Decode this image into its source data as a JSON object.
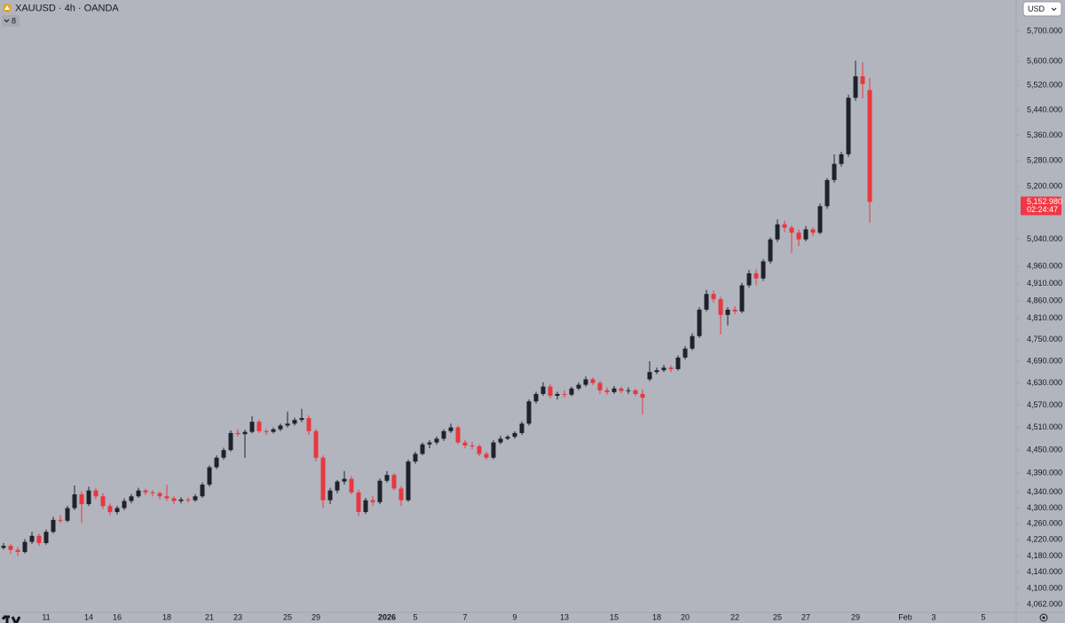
{
  "header": {
    "symbol": "XAUUSD · 4h · OANDA",
    "indicator_count": "8",
    "currency": "USD"
  },
  "chart_data": {
    "type": "candlestick",
    "log_scale": true,
    "grid": false,
    "up_color": "#1f222b",
    "down_color": "#e8373f",
    "ylim": [
      4043,
      5806
    ],
    "yticks": [
      {
        "value": 5700,
        "label": "5,700.000"
      },
      {
        "value": 5600,
        "label": "5,600.000"
      },
      {
        "value": 5520,
        "label": "5,520.000"
      },
      {
        "value": 5440,
        "label": "5,440.000"
      },
      {
        "value": 5360,
        "label": "5,360.000"
      },
      {
        "value": 5280,
        "label": "5,280.000"
      },
      {
        "value": 5200,
        "label": "5,200.000"
      },
      {
        "value": 5040,
        "label": "5,040.000"
      },
      {
        "value": 4960,
        "label": "4,960.000"
      },
      {
        "value": 4910,
        "label": "4,910.000"
      },
      {
        "value": 4860,
        "label": "4,860.000"
      },
      {
        "value": 4810,
        "label": "4,810.000"
      },
      {
        "value": 4750,
        "label": "4,750.000"
      },
      {
        "value": 4690,
        "label": "4,690.000"
      },
      {
        "value": 4630,
        "label": "4,630.000"
      },
      {
        "value": 4570,
        "label": "4,570.000"
      },
      {
        "value": 4510,
        "label": "4,510.000"
      },
      {
        "value": 4450,
        "label": "4,450.000"
      },
      {
        "value": 4390,
        "label": "4,390.000"
      },
      {
        "value": 4340,
        "label": "4,340.000"
      },
      {
        "value": 4300,
        "label": "4,300.000"
      },
      {
        "value": 4260,
        "label": "4,260.000"
      },
      {
        "value": 4220,
        "label": "4,220.000"
      },
      {
        "value": 4180,
        "label": "4,180.000"
      },
      {
        "value": 4140,
        "label": "4,140.000"
      },
      {
        "value": 4100,
        "label": "4,100.000"
      },
      {
        "value": 4062,
        "label": "4,062.000"
      }
    ],
    "last_price": {
      "value": 5152.98,
      "label": "5,152.980"
    },
    "countdown": "02:24:47",
    "categories": [
      null,
      null,
      null,
      null,
      null,
      null,
      null,
      "11",
      null,
      null,
      null,
      null,
      null,
      "14",
      null,
      null,
      null,
      "16",
      null,
      null,
      null,
      null,
      null,
      null,
      "18",
      null,
      null,
      null,
      null,
      null,
      "21",
      null,
      null,
      null,
      "23",
      null,
      null,
      null,
      null,
      null,
      null,
      "25",
      null,
      null,
      null,
      "29",
      null,
      null,
      null,
      null,
      null,
      null,
      null,
      null,
      null,
      "2026",
      null,
      null,
      null,
      "5",
      null,
      null,
      null,
      null,
      null,
      null,
      "7",
      null,
      null,
      null,
      null,
      null,
      null,
      "9",
      null,
      null,
      null,
      null,
      null,
      null,
      "13",
      null,
      null,
      null,
      null,
      null,
      null,
      "15",
      null,
      null,
      null,
      null,
      null,
      "18",
      null,
      null,
      null,
      "20",
      null,
      null,
      null,
      null,
      null,
      null,
      "22",
      null,
      null,
      null,
      null,
      null,
      "25",
      null,
      null,
      null,
      "27",
      null,
      null,
      null,
      null,
      null,
      null,
      "29",
      null,
      null,
      null,
      null,
      null,
      null,
      "Feb",
      null,
      null,
      null,
      "3",
      null,
      null,
      null,
      null,
      null,
      null,
      "5"
    ],
    "values": [
      [
        4195,
        4210,
        4188,
        4200
      ],
      [
        4200,
        4212,
        4196,
        4205
      ],
      [
        4205,
        4210,
        4185,
        4195
      ],
      [
        4195,
        4202,
        4180,
        4190
      ],
      [
        4190,
        4222,
        4186,
        4215
      ],
      [
        4215,
        4240,
        4210,
        4230
      ],
      [
        4230,
        4236,
        4205,
        4212
      ],
      [
        4212,
        4246,
        4208,
        4240
      ],
      [
        4240,
        4278,
        4236,
        4270
      ],
      [
        4270,
        4282,
        4262,
        4268
      ],
      [
        4268,
        4306,
        4264,
        4300
      ],
      [
        4300,
        4358,
        4295,
        4335
      ],
      [
        4335,
        4342,
        4262,
        4310
      ],
      [
        4310,
        4355,
        4305,
        4345
      ],
      [
        4345,
        4352,
        4322,
        4330
      ],
      [
        4330,
        4338,
        4298,
        4305
      ],
      [
        4305,
        4312,
        4282,
        4290
      ],
      [
        4290,
        4306,
        4284,
        4300
      ],
      [
        4300,
        4325,
        4295,
        4318
      ],
      [
        4318,
        4336,
        4312,
        4330
      ],
      [
        4330,
        4352,
        4326,
        4345
      ],
      [
        4345,
        4350,
        4333,
        4340
      ],
      [
        4340,
        4346,
        4330,
        4338
      ],
      [
        4338,
        4342,
        4322,
        4330
      ],
      [
        4330,
        4360,
        4318,
        4325
      ],
      [
        4325,
        4330,
        4310,
        4318
      ],
      [
        4318,
        4328,
        4312,
        4322
      ],
      [
        4322,
        4327,
        4314,
        4320
      ],
      [
        4320,
        4336,
        4316,
        4330
      ],
      [
        4330,
        4366,
        4326,
        4360
      ],
      [
        4360,
        4410,
        4355,
        4405
      ],
      [
        4405,
        4436,
        4400,
        4430
      ],
      [
        4430,
        4456,
        4425,
        4450
      ],
      [
        4450,
        4502,
        4446,
        4495
      ],
      [
        4495,
        4505,
        4486,
        4492
      ],
      [
        4492,
        4504,
        4430,
        4498
      ],
      [
        4498,
        4540,
        4494,
        4525
      ],
      [
        4525,
        4530,
        4495,
        4500
      ],
      [
        4500,
        4506,
        4490,
        4498
      ],
      [
        4498,
        4510,
        4494,
        4505
      ],
      [
        4505,
        4520,
        4500,
        4515
      ],
      [
        4515,
        4552,
        4510,
        4520
      ],
      [
        4520,
        4536,
        4515,
        4530
      ],
      [
        4530,
        4560,
        4524,
        4535
      ],
      [
        4535,
        4542,
        4490,
        4500
      ],
      [
        4500,
        4506,
        4420,
        4430
      ],
      [
        4430,
        4436,
        4300,
        4320
      ],
      [
        4320,
        4352,
        4310,
        4345
      ],
      [
        4345,
        4372,
        4338,
        4368
      ],
      [
        4368,
        4395,
        4360,
        4375
      ],
      [
        4375,
        4382,
        4335,
        4340
      ],
      [
        4340,
        4348,
        4280,
        4290
      ],
      [
        4290,
        4326,
        4285,
        4320
      ],
      [
        4320,
        4330,
        4305,
        4315
      ],
      [
        4315,
        4376,
        4310,
        4370
      ],
      [
        4370,
        4395,
        4365,
        4385
      ],
      [
        4385,
        4390,
        4345,
        4350
      ],
      [
        4350,
        4356,
        4305,
        4320
      ],
      [
        4320,
        4425,
        4316,
        4420
      ],
      [
        4420,
        4446,
        4414,
        4440
      ],
      [
        4440,
        4470,
        4436,
        4465
      ],
      [
        4465,
        4476,
        4455,
        4470
      ],
      [
        4470,
        4486,
        4464,
        4480
      ],
      [
        4480,
        4505,
        4474,
        4500
      ],
      [
        4500,
        4520,
        4495,
        4510
      ],
      [
        4510,
        4515,
        4465,
        4470
      ],
      [
        4470,
        4476,
        4455,
        4462
      ],
      [
        4462,
        4472,
        4452,
        4460
      ],
      [
        4460,
        4465,
        4434,
        4440
      ],
      [
        4440,
        4446,
        4424,
        4430
      ],
      [
        4430,
        4476,
        4426,
        4470
      ],
      [
        4470,
        4488,
        4465,
        4480
      ],
      [
        4480,
        4490,
        4476,
        4485
      ],
      [
        4485,
        4500,
        4480,
        4495
      ],
      [
        4495,
        4526,
        4490,
        4520
      ],
      [
        4520,
        4585,
        4515,
        4580
      ],
      [
        4580,
        4606,
        4574,
        4600
      ],
      [
        4600,
        4632,
        4595,
        4620
      ],
      [
        4620,
        4626,
        4588,
        4595
      ],
      [
        4595,
        4606,
        4585,
        4600
      ],
      [
        4600,
        4610,
        4590,
        4598
      ],
      [
        4598,
        4620,
        4594,
        4615
      ],
      [
        4615,
        4632,
        4610,
        4625
      ],
      [
        4625,
        4648,
        4620,
        4640
      ],
      [
        4640,
        4645,
        4624,
        4630
      ],
      [
        4630,
        4636,
        4600,
        4610
      ],
      [
        4610,
        4618,
        4598,
        4605
      ],
      [
        4605,
        4622,
        4600,
        4615
      ],
      [
        4615,
        4620,
        4602,
        4608
      ],
      [
        4608,
        4618,
        4600,
        4610
      ],
      [
        4610,
        4614,
        4594,
        4600
      ],
      [
        4600,
        4612,
        4545,
        4590
      ],
      [
        4640,
        4690,
        4635,
        4660
      ],
      [
        4660,
        4672,
        4654,
        4665
      ],
      [
        4665,
        4680,
        4660,
        4672
      ],
      [
        4672,
        4678,
        4660,
        4668
      ],
      [
        4668,
        4706,
        4664,
        4700
      ],
      [
        4700,
        4732,
        4695,
        4725
      ],
      [
        4725,
        4768,
        4720,
        4760
      ],
      [
        4760,
        4842,
        4755,
        4835
      ],
      [
        4835,
        4892,
        4830,
        4880
      ],
      [
        4880,
        4890,
        4855,
        4865
      ],
      [
        4865,
        4872,
        4765,
        4820
      ],
      [
        4820,
        4842,
        4790,
        4835
      ],
      [
        4835,
        4845,
        4822,
        4830
      ],
      [
        4830,
        4912,
        4825,
        4905
      ],
      [
        4905,
        4950,
        4898,
        4940
      ],
      [
        4940,
        4952,
        4905,
        4925
      ],
      [
        4925,
        4982,
        4918,
        4975
      ],
      [
        4975,
        5046,
        4968,
        5040
      ],
      [
        5040,
        5100,
        5032,
        5085
      ],
      [
        5085,
        5096,
        5062,
        5075
      ],
      [
        5075,
        5082,
        5000,
        5060
      ],
      [
        5060,
        5070,
        5020,
        5040
      ],
      [
        5040,
        5080,
        5034,
        5070
      ],
      [
        5070,
        5076,
        5050,
        5060
      ],
      [
        5060,
        5148,
        5055,
        5140
      ],
      [
        5140,
        5226,
        5132,
        5220
      ],
      [
        5220,
        5300,
        5212,
        5270
      ],
      [
        5270,
        5308,
        5262,
        5300
      ],
      [
        5300,
        5490,
        5292,
        5480
      ],
      [
        5480,
        5602,
        5470,
        5550
      ],
      [
        5550,
        5596,
        5478,
        5525
      ],
      [
        5505,
        5545,
        5090,
        5152.98
      ],
      null,
      null,
      null,
      null,
      null,
      null,
      null,
      null,
      null,
      null,
      null,
      null,
      null,
      null,
      null,
      null
    ]
  }
}
